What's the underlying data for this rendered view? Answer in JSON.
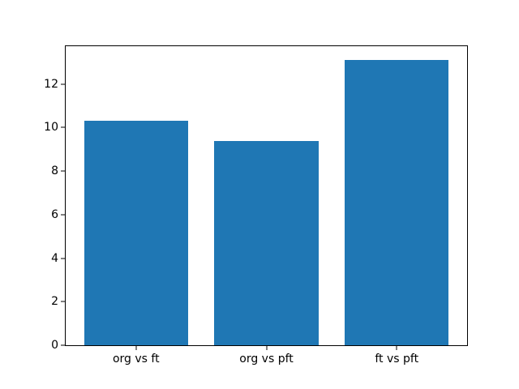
{
  "figure": {
    "background": "#ffffff",
    "spine_color": "#000000",
    "text_color": "#000000"
  },
  "chart_data": {
    "type": "bar",
    "title": "",
    "xlabel": "",
    "ylabel": "",
    "categories": [
      "org vs ft",
      "org vs pft",
      "ft vs pft"
    ],
    "values": [
      10.3,
      9.4,
      13.1
    ],
    "bar_color": "#1f77b4",
    "yticks": [
      0,
      2,
      4,
      6,
      8,
      10,
      12
    ],
    "ylim": [
      0,
      13.74
    ],
    "xlim": [
      -0.54,
      2.54
    ],
    "bar_width": 0.8,
    "grid": false,
    "legend": false
  }
}
